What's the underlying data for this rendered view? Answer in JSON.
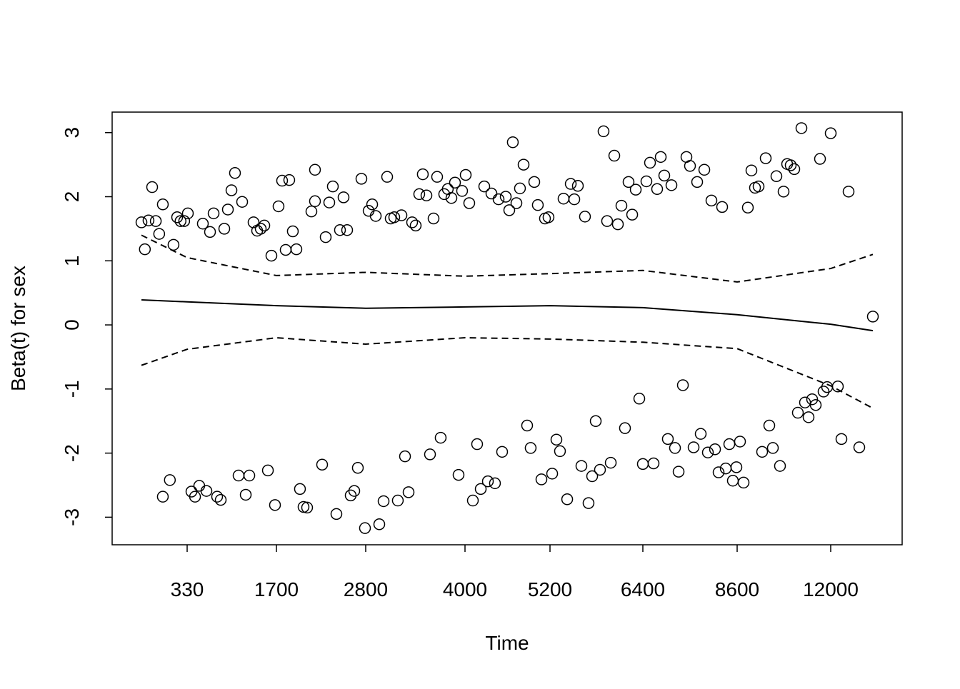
{
  "chart_data": {
    "type": "scatter",
    "xlabel": "Time",
    "ylabel": "Beta(t) for sex",
    "xscale": "transformed",
    "xlim": [
      0,
      14500
    ],
    "xticks": [
      330,
      1700,
      2800,
      4000,
      5200,
      6400,
      8600,
      12000
    ],
    "ylim": [
      -3.43,
      3.32
    ],
    "yticks": [
      -3,
      -2,
      -1,
      0,
      1,
      2,
      3
    ],
    "color": "#000000",
    "x": [
      129,
      144,
      160,
      176,
      192,
      207,
      223,
      270,
      286,
      301,
      317,
      341,
      571,
      681,
      736,
      900,
      955,
      1010,
      1064,
      1174,
      1349,
      1404,
      1459,
      1514,
      1623,
      1726,
      1770,
      1814,
      1858,
      1902,
      1946,
      2131,
      2175,
      2175,
      2307,
      2351,
      2395,
      2483,
      2527,
      2571,
      2747,
      2835,
      2878,
      2921,
      3059,
      3102,
      3145,
      3232,
      3361,
      3404,
      3447,
      3490,
      3534,
      3620,
      3663,
      3749,
      3792,
      3836,
      3879,
      3965,
      4010,
      4060,
      4272,
      4373,
      4474,
      4575,
      4625,
      4675,
      4726,
      4776,
      4827,
      4978,
      5028,
      5129,
      5179,
      5375,
      5468,
      5514,
      5560,
      5652,
      5892,
      5938,
      6031,
      6077,
      6123,
      6215,
      6262,
      6308,
      6483,
      6567,
      6733,
      6817,
      6900,
      7067,
      7417,
      7500,
      7667,
      7834,
      8000,
      8250,
      8989,
      9119,
      9249,
      9379,
      9638,
      10027,
      10287,
      10417,
      10546,
      10676,
      10936,
      11611,
      12000,
      12625,
      13475,
      223,
      254,
      396,
      451,
      516,
      626,
      790,
      845,
      1119,
      1229,
      1284,
      1569,
      1678,
      1990,
      2034,
      2078,
      2263,
      2439,
      2615,
      2659,
      2703,
      2791,
      2964,
      3016,
      3188,
      3275,
      3318,
      3577,
      3706,
      3922,
      4111,
      4171,
      4222,
      4323,
      4423,
      4524,
      4877,
      4927,
      5079,
      5228,
      5283,
      5329,
      5422,
      5606,
      5698,
      5745,
      5791,
      5846,
      5985,
      6169,
      6354,
      6400,
      6650,
      6983,
      7150,
      7234,
      7334,
      7584,
      7750,
      7917,
      8084,
      8167,
      8334,
      8417,
      8500,
      8583,
      8704,
      8834,
      9508,
      9768,
      9898,
      10157,
      10806,
      11066,
      11195,
      11325,
      11455,
      11740,
      11870,
      12250,
      12375,
      13000
    ],
    "values": [
      1.6,
      1.18,
      1.63,
      2.15,
      1.62,
      1.42,
      1.88,
      1.25,
      1.68,
      1.62,
      1.62,
      1.74,
      1.58,
      1.45,
      1.74,
      1.5,
      1.8,
      2.1,
      2.37,
      1.92,
      1.6,
      1.47,
      1.5,
      1.55,
      1.08,
      1.85,
      2.25,
      1.17,
      2.26,
      1.46,
      1.18,
      1.77,
      2.42,
      1.93,
      1.37,
      1.91,
      2.16,
      1.48,
      1.99,
      1.48,
      2.28,
      1.78,
      1.88,
      1.7,
      2.31,
      1.66,
      1.68,
      1.71,
      1.6,
      1.55,
      2.04,
      2.35,
      2.02,
      1.66,
      2.31,
      2.04,
      2.12,
      1.98,
      2.22,
      2.09,
      2.34,
      1.9,
      2.16,
      2.05,
      1.96,
      2.0,
      1.79,
      2.85,
      1.9,
      2.13,
      2.5,
      2.23,
      1.87,
      1.66,
      1.68,
      1.97,
      2.2,
      1.96,
      2.17,
      1.69,
      3.02,
      1.62,
      2.64,
      1.57,
      1.86,
      2.23,
      1.72,
      2.11,
      2.24,
      2.53,
      2.12,
      2.62,
      2.33,
      2.18,
      2.62,
      2.48,
      2.23,
      2.42,
      1.94,
      1.84,
      1.83,
      2.41,
      2.14,
      2.16,
      2.6,
      2.32,
      2.08,
      2.51,
      2.49,
      2.43,
      3.07,
      2.59,
      2.99,
      2.08,
      0.13,
      -2.68,
      -2.42,
      -2.6,
      -2.68,
      -2.51,
      -2.59,
      -2.68,
      -2.73,
      -2.35,
      -2.65,
      -2.35,
      -2.27,
      -2.81,
      -2.56,
      -2.84,
      -2.85,
      -2.18,
      -2.95,
      -2.66,
      -2.59,
      -2.23,
      -3.17,
      -3.11,
      -2.75,
      -2.74,
      -2.05,
      -2.61,
      -2.02,
      -1.76,
      -2.34,
      -2.74,
      -1.86,
      -2.56,
      -2.44,
      -2.47,
      -1.98,
      -1.57,
      -1.92,
      -2.41,
      -2.32,
      -1.79,
      -1.97,
      -2.72,
      -2.2,
      -2.78,
      -2.36,
      -1.5,
      -2.26,
      -2.15,
      -1.61,
      -1.15,
      -2.17,
      -2.16,
      -1.78,
      -1.92,
      -2.29,
      -0.94,
      -1.91,
      -1.7,
      -1.99,
      -1.94,
      -2.3,
      -2.24,
      -1.86,
      -2.43,
      -2.22,
      -1.82,
      -2.46,
      -1.98,
      -1.57,
      -1.92,
      -2.2,
      -1.37,
      -1.21,
      -1.44,
      -1.16,
      -1.25,
      -1.04,
      -0.97,
      -0.96,
      -1.78,
      -1.91
    ],
    "curve_x": [
      129,
      330,
      1700,
      2800,
      4000,
      5200,
      6400,
      8600,
      12000,
      13475
    ],
    "curves": [
      {
        "style": "solid",
        "values": [
          0.39,
          0.36,
          0.3,
          0.26,
          0.28,
          0.3,
          0.27,
          0.16,
          0.01,
          -0.09
        ]
      },
      {
        "style": "dashed",
        "values": [
          1.4,
          1.05,
          0.77,
          0.82,
          0.76,
          0.8,
          0.85,
          0.67,
          0.88,
          1.1
        ]
      },
      {
        "style": "dashed",
        "values": [
          -0.63,
          -0.38,
          -0.2,
          -0.3,
          -0.2,
          -0.22,
          -0.27,
          -0.37,
          -0.95,
          -1.3
        ]
      }
    ]
  }
}
